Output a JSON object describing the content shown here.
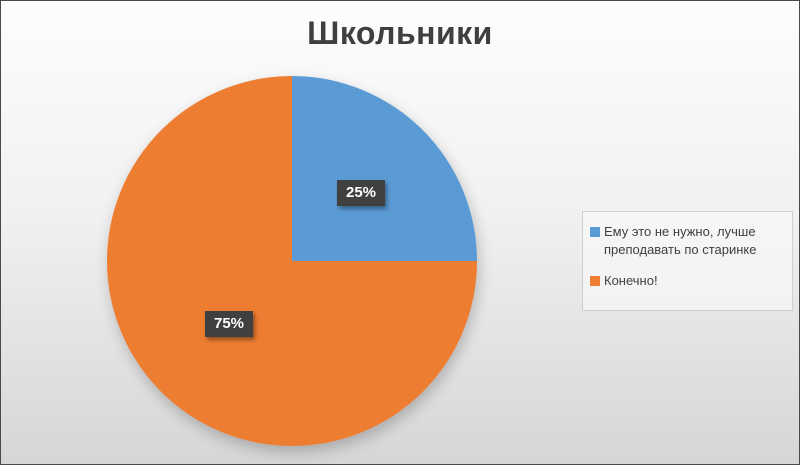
{
  "title": "Школьники",
  "chart_data": {
    "type": "pie",
    "title": "Школьники",
    "start_angle_deg": 0,
    "direction": "clockwise",
    "legend_position": "right",
    "data_labels": "percentage",
    "slices": [
      {
        "label": "Ему это не нужно, лучше преподавать по старинке",
        "value": 25,
        "percent_label": "25%",
        "color": "#5B9BD5"
      },
      {
        "label": "Конечно!",
        "value": 75,
        "percent_label": "75%",
        "color": "#ED7D31"
      }
    ]
  },
  "colors": {
    "title_text": "#3F3F3F",
    "legend_text": "#404040",
    "label_box_bg": "#404040",
    "label_text": "#FFFFFF",
    "frame_border": "#4A4A4A",
    "background_top": "#FDFDFD",
    "background_bottom": "#D6D6D6"
  }
}
